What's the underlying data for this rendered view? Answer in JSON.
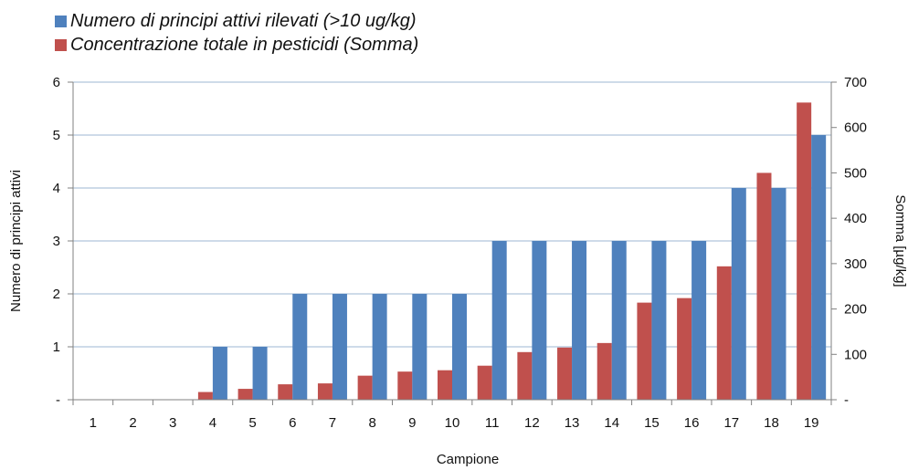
{
  "chart_data": {
    "type": "bar",
    "title": "",
    "xlabel": "Campione",
    "ylabel": "Numero di principi attivi",
    "y2label": "Somma [µg/kg]",
    "categories": [
      "1",
      "2",
      "3",
      "4",
      "5",
      "6",
      "7",
      "8",
      "9",
      "10",
      "11",
      "12",
      "13",
      "14",
      "15",
      "16",
      "17",
      "18",
      "19"
    ],
    "ylim": [
      0,
      6
    ],
    "y2lim": [
      0,
      700
    ],
    "yticks": [
      "-",
      "1",
      "2",
      "3",
      "4",
      "5",
      "6"
    ],
    "y2ticks": [
      "-",
      "100",
      "200",
      "300",
      "400",
      "500",
      "600",
      "700"
    ],
    "grid": true,
    "legend_position": "top-left",
    "series": [
      {
        "name": "Numero di principi attivi rilevati (>10 ug/kg)",
        "axis": "left",
        "color": "#4F81BD",
        "values": [
          0,
          0,
          0,
          1,
          1,
          2,
          2,
          2,
          2,
          2,
          3,
          3,
          3,
          3,
          3,
          3,
          4,
          4,
          5
        ]
      },
      {
        "name": "Concentrazione totale in pesticidi (Somma)",
        "axis": "right",
        "color": "#C0504D",
        "values": [
          0,
          0,
          0,
          17,
          24,
          34,
          36,
          53,
          62,
          65,
          75,
          105,
          115,
          125,
          214,
          224,
          294,
          500,
          655
        ]
      }
    ]
  }
}
